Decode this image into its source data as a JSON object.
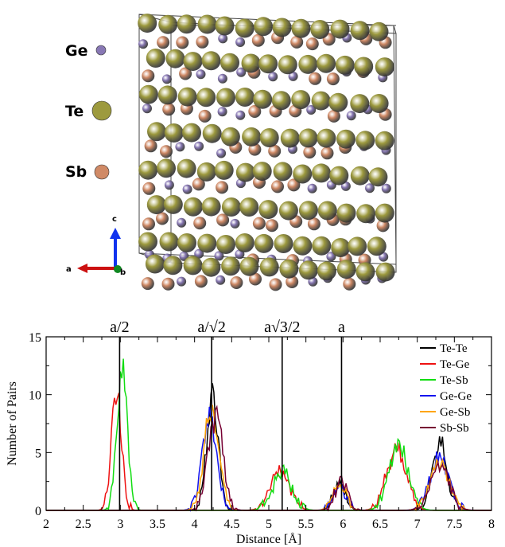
{
  "structure_panel": {
    "legend": [
      {
        "label": "Ge",
        "color": "#8878b4"
      },
      {
        "label": "Te",
        "color": "#9d9a3e"
      },
      {
        "label": "Sb",
        "color": "#d08a66"
      }
    ],
    "axes": {
      "a": "a",
      "b": "b",
      "c": "c"
    },
    "colors": {
      "a_axis": "#cc1111",
      "b_axis": "#118822",
      "c_axis": "#1133ee"
    }
  },
  "chart_data": {
    "type": "line",
    "title": "",
    "xlabel": "Distance [Å]",
    "ylabel": "Number of Pairs",
    "xlim": [
      2,
      8
    ],
    "ylim": [
      0,
      15
    ],
    "xticks": [
      "2",
      "2.5",
      "3",
      "3.5",
      "4",
      "4.5",
      "5",
      "5.5",
      "6",
      "6.5",
      "7",
      "7.5",
      "8"
    ],
    "yticks": [
      "0",
      "5",
      "10",
      "15"
    ],
    "reference_lines": [
      {
        "label": "a/2",
        "x": 2.99
      },
      {
        "label": "a/√2",
        "x": 4.23
      },
      {
        "label": "a√3/2",
        "x": 5.18
      },
      {
        "label": "a",
        "x": 5.98
      }
    ],
    "legend_position": "top-right",
    "series": [
      {
        "name": "Te-Te",
        "color": "#000000",
        "peaks": [
          [
            4.24,
            9.8,
            0.08
          ],
          [
            5.95,
            2.3,
            0.08
          ],
          [
            7.3,
            6.0,
            0.1
          ]
        ]
      },
      {
        "name": "Te-Ge",
        "color": "#ee1111",
        "peaks": [
          [
            2.95,
            10.0,
            0.07
          ],
          [
            5.15,
            3.3,
            0.13
          ],
          [
            6.72,
            5.3,
            0.13
          ]
        ]
      },
      {
        "name": "Te-Sb",
        "color": "#11dd11",
        "peaks": [
          [
            3.02,
            12.3,
            0.07
          ],
          [
            5.18,
            3.4,
            0.13
          ],
          [
            6.75,
            5.4,
            0.13
          ]
        ]
      },
      {
        "name": "Ge-Ge",
        "color": "#1111ee",
        "peaks": [
          [
            4.2,
            8.0,
            0.1
          ],
          [
            5.95,
            2.0,
            0.09
          ],
          [
            7.3,
            4.5,
            0.13
          ]
        ]
      },
      {
        "name": "Ge-Sb",
        "color": "#ffa500",
        "peaks": [
          [
            4.23,
            8.5,
            0.1
          ],
          [
            5.95,
            2.2,
            0.09
          ],
          [
            7.3,
            4.3,
            0.13
          ]
        ]
      },
      {
        "name": "Sb-Sb",
        "color": "#770033",
        "peaks": [
          [
            4.28,
            8.2,
            0.1
          ],
          [
            5.98,
            2.5,
            0.09
          ],
          [
            7.3,
            4.0,
            0.13
          ]
        ]
      }
    ]
  }
}
